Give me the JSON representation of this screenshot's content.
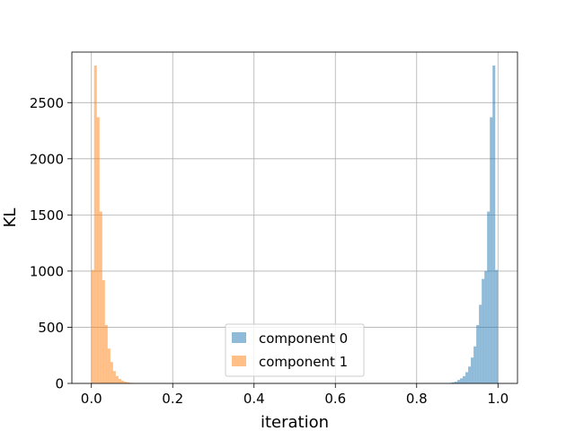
{
  "chart_data": {
    "type": "bar",
    "xlabel": "iteration",
    "ylabel": "KL",
    "xlim": [
      -0.048,
      1.048
    ],
    "ylim": [
      0,
      2950
    ],
    "xticks": [
      0.0,
      0.2,
      0.4,
      0.6,
      0.8,
      1.0
    ],
    "xtick_labels": [
      "0.0",
      "0.2",
      "0.4",
      "0.6",
      "0.8",
      "1.0"
    ],
    "yticks": [
      0,
      500,
      1000,
      1500,
      2000,
      2500
    ],
    "ytick_labels": [
      "0",
      "500",
      "1000",
      "1500",
      "2000",
      "2500"
    ],
    "grid": true,
    "legend": "lower-center",
    "series": [
      {
        "name": "component 0",
        "color": "#1f77b4",
        "alpha": 0.5,
        "bin_edges": [
          0.88,
          0.8867,
          0.8933,
          0.9,
          0.9067,
          0.9133,
          0.92,
          0.9267,
          0.9333,
          0.94,
          0.9467,
          0.9533,
          0.96,
          0.9667,
          0.9733,
          0.98,
          0.9867,
          0.9933,
          1.0
        ],
        "counts": [
          5,
          10,
          15,
          30,
          45,
          65,
          100,
          150,
          230,
          330,
          520,
          700,
          930,
          1000,
          1530,
          2370,
          2830,
          1010
        ]
      },
      {
        "name": "component 1",
        "color": "#ff7f0e",
        "alpha": 0.5,
        "bin_edges": [
          0.0,
          0.0067,
          0.0133,
          0.02,
          0.0267,
          0.0333,
          0.04,
          0.0467,
          0.0533,
          0.06,
          0.0667,
          0.0733,
          0.08,
          0.0867,
          0.0933,
          0.1,
          0.1067,
          0.1133,
          0.12
        ],
        "counts": [
          1010,
          2830,
          2370,
          1530,
          920,
          520,
          310,
          190,
          110,
          65,
          40,
          25,
          15,
          10,
          6,
          4,
          2,
          1
        ]
      }
    ]
  }
}
